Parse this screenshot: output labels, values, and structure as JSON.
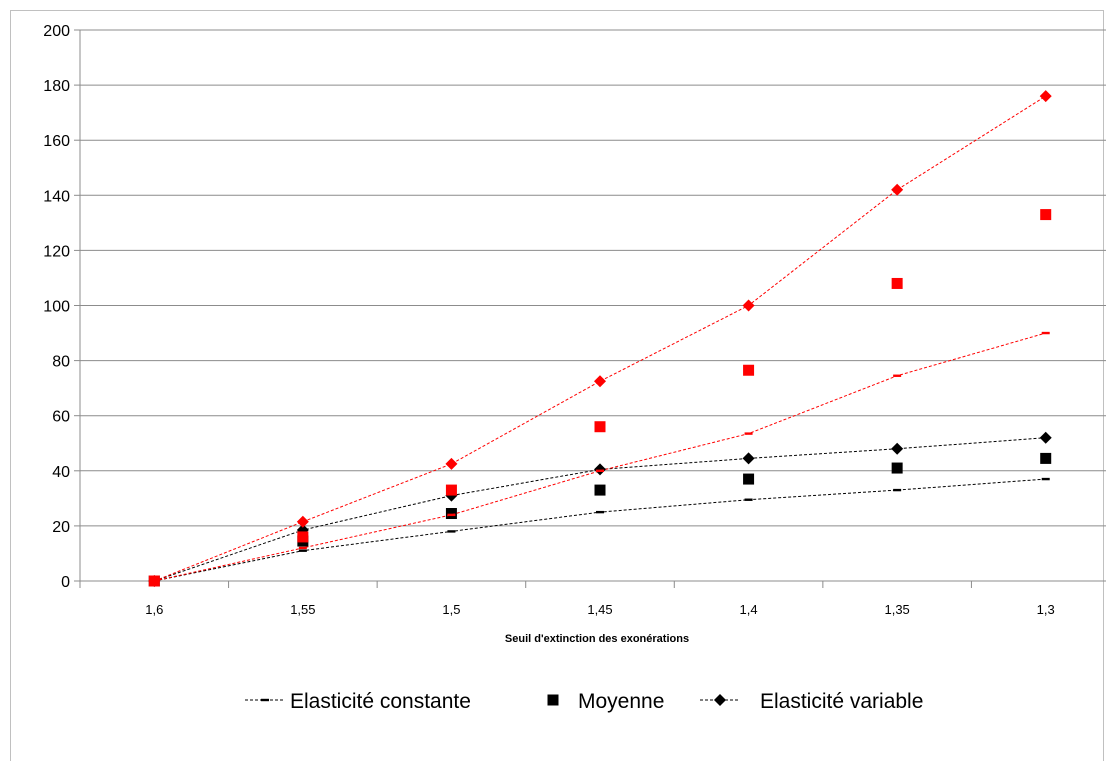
{
  "chart_data": {
    "type": "scatter",
    "title": "",
    "xlabel": "Seuil d'extinction des exonérations",
    "ylabel": "",
    "categories": [
      "1,6",
      "1,55",
      "1,5",
      "1,45",
      "1,4",
      "1,35",
      "1,3"
    ],
    "x": [
      1.6,
      1.55,
      1.5,
      1.45,
      1.4,
      1.35,
      1.3
    ],
    "ylim": [
      0,
      200
    ],
    "yticks": [
      0,
      20,
      40,
      60,
      80,
      100,
      120,
      140,
      160,
      180,
      200
    ],
    "ytick_labels": [
      "0",
      "20",
      "40",
      "60",
      "80",
      "100",
      "120",
      "140",
      "160",
      "180",
      "200"
    ],
    "grid": "horizontal",
    "legend_position": "bottom",
    "series": [
      {
        "name": "Elasticité constante",
        "marker": "dash",
        "line": "dashed",
        "color": "#000000",
        "values": [
          0,
          11,
          18,
          25,
          29.5,
          33,
          37
        ]
      },
      {
        "name": "Moyenne",
        "marker": "square",
        "line": "none",
        "color": "#000000",
        "values": [
          0,
          14.5,
          24.5,
          33,
          37,
          41,
          44.5
        ]
      },
      {
        "name": "Elasticité variable",
        "marker": "diamond",
        "line": "dashed",
        "color": "#000000",
        "values": [
          0,
          18.5,
          31,
          40.5,
          44.5,
          48,
          52
        ]
      },
      {
        "marker": "dash",
        "line": "dashed",
        "color": "#ff0000",
        "values": [
          0,
          12,
          24,
          40,
          53.5,
          74.5,
          90
        ]
      },
      {
        "marker": "square",
        "line": "none",
        "color": "#ff0000",
        "values": [
          0,
          16,
          33,
          56,
          76.5,
          108,
          133
        ]
      },
      {
        "marker": "diamond",
        "line": "dashed",
        "color": "#ff0000",
        "values": [
          0,
          21.5,
          42.5,
          72.5,
          100,
          142,
          176
        ]
      }
    ]
  }
}
